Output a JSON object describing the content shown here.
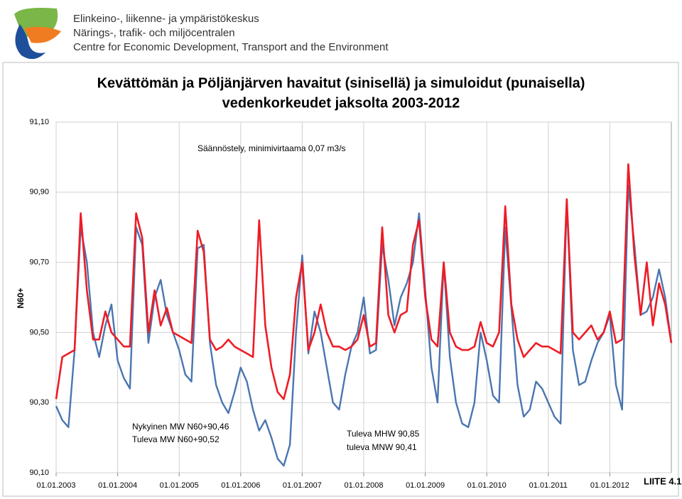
{
  "header": {
    "lines": [
      "Elinkeino-, liikenne- ja ympäristökeskus",
      "Närings-, trafik- och miljöcentralen",
      "Centre for Economic Development, Transport and the Environment"
    ]
  },
  "chart_data": {
    "type": "line",
    "title": [
      "Kevättömän ja Pöljänjärven havaitut (sinisellä) ja simuloidut (punaisella)",
      "vedenkorkeudet jaksolta 2003-2012"
    ],
    "y_label": "N60+",
    "annotations": [
      "Säännöstely, minimivirtaama 0,07 m3/s",
      "Nykyinen MW N60+90,46",
      "Tuleva MW N60+90,52",
      "Tuleva MHW 90,85",
      "tuleva MNW 90,41"
    ],
    "corner_label": "LIITE 4.1",
    "xlim": [
      2003,
      2013
    ],
    "xticks": [
      {
        "value": 2003,
        "label": "01.01.2003"
      },
      {
        "value": 2004,
        "label": "01.01.2004"
      },
      {
        "value": 2005,
        "label": "01.01.2005"
      },
      {
        "value": 2006,
        "label": "01.01.2006"
      },
      {
        "value": 2007,
        "label": "01.01.2007"
      },
      {
        "value": 2008,
        "label": "01.01.2008"
      },
      {
        "value": 2009,
        "label": "01.01.2009"
      },
      {
        "value": 2010,
        "label": "01.01.2010"
      },
      {
        "value": 2011,
        "label": "01.01.2011"
      },
      {
        "value": 2012,
        "label": "01.01.2012"
      }
    ],
    "ylim": [
      90.1,
      91.1
    ],
    "yticks": [
      {
        "value": 90.1,
        "label": "90,10"
      },
      {
        "value": 90.3,
        "label": "90,30"
      },
      {
        "value": 90.5,
        "label": "90,50"
      },
      {
        "value": 90.7,
        "label": "90,70"
      },
      {
        "value": 90.9,
        "label": "90,90"
      },
      {
        "value": 91.1,
        "label": "91,10"
      }
    ],
    "grid": true,
    "x": [
      2003.0,
      2003.1,
      2003.2,
      2003.3,
      2003.4,
      2003.5,
      2003.6,
      2003.7,
      2003.8,
      2003.9,
      2004.0,
      2004.1,
      2004.2,
      2004.3,
      2004.4,
      2004.5,
      2004.6,
      2004.7,
      2004.8,
      2004.9,
      2005.0,
      2005.1,
      2005.2,
      2005.3,
      2005.4,
      2005.5,
      2005.6,
      2005.7,
      2005.8,
      2005.9,
      2006.0,
      2006.1,
      2006.2,
      2006.3,
      2006.4,
      2006.5,
      2006.6,
      2006.7,
      2006.8,
      2006.9,
      2007.0,
      2007.1,
      2007.2,
      2007.3,
      2007.4,
      2007.5,
      2007.6,
      2007.7,
      2007.8,
      2007.9,
      2008.0,
      2008.1,
      2008.2,
      2008.3,
      2008.4,
      2008.5,
      2008.6,
      2008.7,
      2008.8,
      2008.9,
      2009.0,
      2009.1,
      2009.2,
      2009.3,
      2009.4,
      2009.5,
      2009.6,
      2009.7,
      2009.8,
      2009.9,
      2010.0,
      2010.1,
      2010.2,
      2010.3,
      2010.4,
      2010.5,
      2010.6,
      2010.7,
      2010.8,
      2010.9,
      2011.0,
      2011.1,
      2011.2,
      2011.3,
      2011.4,
      2011.5,
      2011.6,
      2011.7,
      2011.8,
      2011.9,
      2012.0,
      2012.1,
      2012.2,
      2012.3,
      2012.4,
      2012.5,
      2012.6,
      2012.7,
      2012.8,
      2012.9,
      2013.0
    ],
    "series": [
      {
        "color": "#4a76b0",
        "values": [
          90.29,
          90.25,
          90.23,
          90.45,
          90.8,
          90.7,
          90.5,
          90.43,
          90.52,
          90.58,
          90.42,
          90.37,
          90.34,
          90.8,
          90.75,
          90.47,
          90.6,
          90.65,
          90.55,
          90.5,
          90.45,
          90.38,
          90.36,
          90.74,
          90.75,
          90.47,
          90.35,
          90.3,
          90.27,
          90.33,
          90.4,
          90.36,
          90.28,
          90.22,
          90.25,
          90.2,
          90.14,
          90.12,
          90.18,
          90.5,
          90.72,
          90.44,
          90.56,
          90.5,
          90.4,
          90.3,
          90.28,
          90.38,
          90.46,
          90.5,
          90.6,
          90.44,
          90.45,
          90.75,
          90.65,
          90.52,
          90.6,
          90.64,
          90.7,
          90.84,
          90.62,
          90.4,
          90.3,
          90.7,
          90.43,
          90.3,
          90.24,
          90.23,
          90.3,
          90.5,
          90.42,
          90.32,
          90.3,
          90.8,
          90.57,
          90.35,
          90.26,
          90.28,
          90.36,
          90.34,
          90.3,
          90.26,
          90.24,
          90.88,
          90.45,
          90.35,
          90.36,
          90.42,
          90.47,
          90.5,
          90.55,
          90.35,
          90.28,
          90.92,
          90.75,
          90.55,
          90.56,
          90.6,
          90.68,
          90.6,
          90.47
        ]
      },
      {
        "color": "#ee1c25",
        "values": [
          90.31,
          90.43,
          90.44,
          90.45,
          90.84,
          90.62,
          90.48,
          90.48,
          90.56,
          90.5,
          90.48,
          90.46,
          90.46,
          90.84,
          90.77,
          90.5,
          90.62,
          90.52,
          90.57,
          90.5,
          90.49,
          90.48,
          90.47,
          90.79,
          90.73,
          90.48,
          90.45,
          90.46,
          90.48,
          90.46,
          90.45,
          90.44,
          90.43,
          90.82,
          90.52,
          90.4,
          90.33,
          90.31,
          90.38,
          90.6,
          90.7,
          90.45,
          90.5,
          90.58,
          90.5,
          90.46,
          90.46,
          90.45,
          90.46,
          90.48,
          90.55,
          90.46,
          90.47,
          90.8,
          90.55,
          90.5,
          90.55,
          90.56,
          90.75,
          90.82,
          90.6,
          90.48,
          90.46,
          90.7,
          90.5,
          90.46,
          90.45,
          90.45,
          90.46,
          90.53,
          90.47,
          90.46,
          90.5,
          90.86,
          90.58,
          90.48,
          90.43,
          90.45,
          90.47,
          90.46,
          90.46,
          90.45,
          90.44,
          90.88,
          90.5,
          90.48,
          90.5,
          90.52,
          90.48,
          90.5,
          90.56,
          90.47,
          90.48,
          90.98,
          90.72,
          90.55,
          90.7,
          90.52,
          90.64,
          90.58,
          90.47
        ]
      }
    ]
  }
}
